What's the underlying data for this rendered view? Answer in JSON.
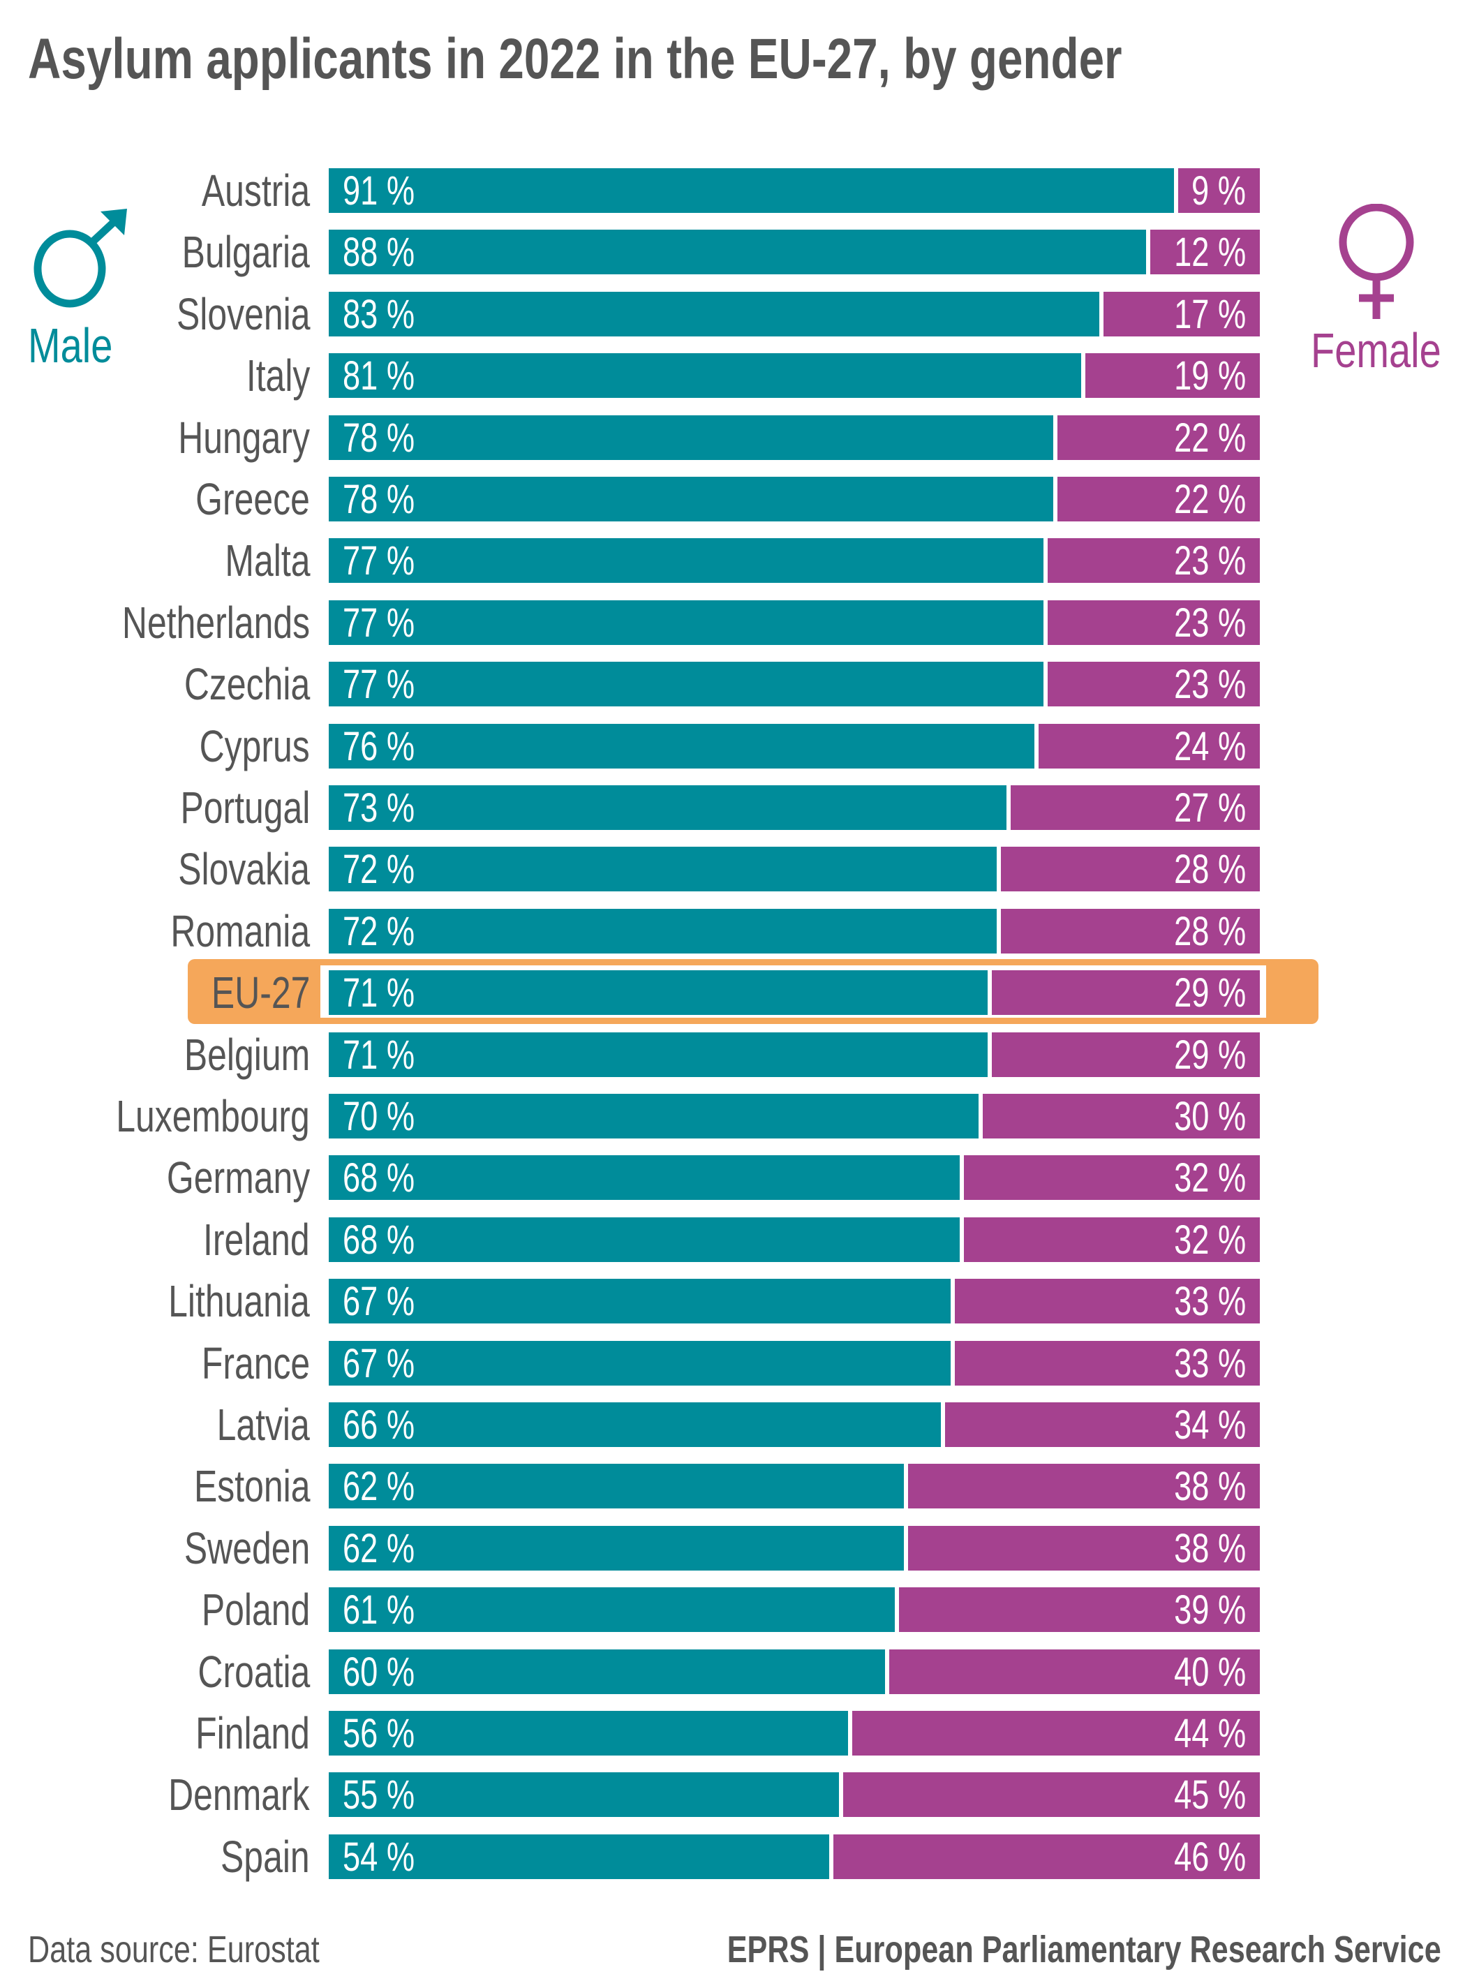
{
  "colors": {
    "male": "#008C9A",
    "female": "#A5418F",
    "highlight": "#F5A75A",
    "text": "#555555"
  },
  "title": "Asylum applicants in 2022 in the EU-27, by gender",
  "legend": {
    "male": "Male",
    "female": "Female",
    "male_icon": "male-symbol-icon",
    "female_icon": "female-symbol-icon"
  },
  "footer": {
    "source": "Data source: Eurostat",
    "credit": "EPRS | European Parliamentary Research Service"
  },
  "chart_data": {
    "type": "bar",
    "stacked": true,
    "orientation": "horizontal",
    "unit": "%",
    "highlighted_category": "EU-27",
    "categories": [
      "Austria",
      "Bulgaria",
      "Slovenia",
      "Italy",
      "Hungary",
      "Greece",
      "Malta",
      "Netherlands",
      "Czechia",
      "Cyprus",
      "Portugal",
      "Slovakia",
      "Romania",
      "EU-27",
      "Belgium",
      "Luxembourg",
      "Germany",
      "Ireland",
      "Lithuania",
      "France",
      "Latvia",
      "Estonia",
      "Sweden",
      "Poland",
      "Croatia",
      "Finland",
      "Denmark",
      "Spain"
    ],
    "series": [
      {
        "name": "Male",
        "values": [
          91,
          88,
          83,
          81,
          78,
          78,
          77,
          77,
          77,
          76,
          73,
          72,
          72,
          71,
          71,
          70,
          68,
          68,
          67,
          67,
          66,
          62,
          62,
          61,
          60,
          56,
          55,
          54
        ]
      },
      {
        "name": "Female",
        "values": [
          9,
          12,
          17,
          19,
          22,
          22,
          23,
          23,
          23,
          24,
          27,
          28,
          28,
          29,
          29,
          30,
          32,
          32,
          33,
          33,
          34,
          38,
          38,
          39,
          40,
          44,
          45,
          46
        ]
      }
    ]
  }
}
